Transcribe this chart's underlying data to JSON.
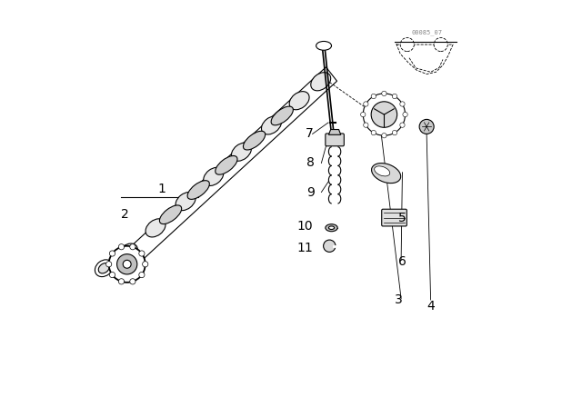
{
  "bg_color": "#ffffff",
  "line_color": "#000000",
  "fig_width": 6.4,
  "fig_height": 4.48,
  "dpi": 100,
  "watermark": "00085_07"
}
